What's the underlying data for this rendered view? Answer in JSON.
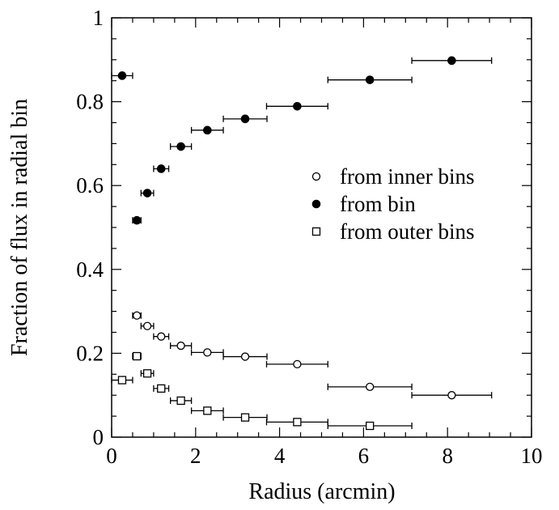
{
  "chart_data": {
    "type": "scatter",
    "xlabel": "Radius (arcmin)",
    "ylabel": "Fraction of flux in radial bin",
    "xlim": [
      0,
      10
    ],
    "ylim": [
      0,
      1
    ],
    "xticks": [
      "0",
      "2",
      "4",
      "6",
      "8",
      "10"
    ],
    "yticks": [
      "0",
      "0.2",
      "0.4",
      "0.6",
      "0.8",
      "1"
    ],
    "grid": false,
    "legend_position": "right",
    "series": [
      {
        "name": "from inner bins",
        "marker": "open-circle",
        "points": [
          {
            "x": 0.6,
            "y": 0.29,
            "xerr": 0.1
          },
          {
            "x": 0.85,
            "y": 0.265,
            "xerr": 0.15
          },
          {
            "x": 1.18,
            "y": 0.24,
            "xerr": 0.18
          },
          {
            "x": 1.65,
            "y": 0.218,
            "xerr": 0.25
          },
          {
            "x": 2.28,
            "y": 0.202,
            "xerr": 0.38
          },
          {
            "x": 3.18,
            "y": 0.192,
            "xerr": 0.52
          },
          {
            "x": 4.42,
            "y": 0.174,
            "xerr": 0.73
          },
          {
            "x": 6.15,
            "y": 0.12,
            "xerr": 1.0
          },
          {
            "x": 8.1,
            "y": 0.1,
            "xerr": 0.95
          }
        ]
      },
      {
        "name": "from bin",
        "marker": "filled-circle",
        "points": [
          {
            "x": 0.25,
            "y": 0.862,
            "xerr": 0.25
          },
          {
            "x": 0.6,
            "y": 0.517,
            "xerr": 0.1
          },
          {
            "x": 0.85,
            "y": 0.582,
            "xerr": 0.15
          },
          {
            "x": 1.18,
            "y": 0.64,
            "xerr": 0.18
          },
          {
            "x": 1.65,
            "y": 0.693,
            "xerr": 0.25
          },
          {
            "x": 2.28,
            "y": 0.732,
            "xerr": 0.38
          },
          {
            "x": 3.18,
            "y": 0.759,
            "xerr": 0.52
          },
          {
            "x": 4.42,
            "y": 0.789,
            "xerr": 0.73
          },
          {
            "x": 6.15,
            "y": 0.852,
            "xerr": 1.0
          },
          {
            "x": 8.1,
            "y": 0.898,
            "xerr": 0.95
          }
        ]
      },
      {
        "name": "from outer bins",
        "marker": "open-square",
        "points": [
          {
            "x": 0.25,
            "y": 0.136,
            "xerr": 0.25
          },
          {
            "x": 0.6,
            "y": 0.193,
            "xerr": 0.1
          },
          {
            "x": 0.85,
            "y": 0.152,
            "xerr": 0.15
          },
          {
            "x": 1.18,
            "y": 0.116,
            "xerr": 0.18
          },
          {
            "x": 1.65,
            "y": 0.087,
            "xerr": 0.25
          },
          {
            "x": 2.28,
            "y": 0.063,
            "xerr": 0.38
          },
          {
            "x": 3.18,
            "y": 0.047,
            "xerr": 0.52
          },
          {
            "x": 4.42,
            "y": 0.036,
            "xerr": 0.73
          },
          {
            "x": 6.15,
            "y": 0.027,
            "xerr": 1.0
          }
        ]
      }
    ]
  }
}
